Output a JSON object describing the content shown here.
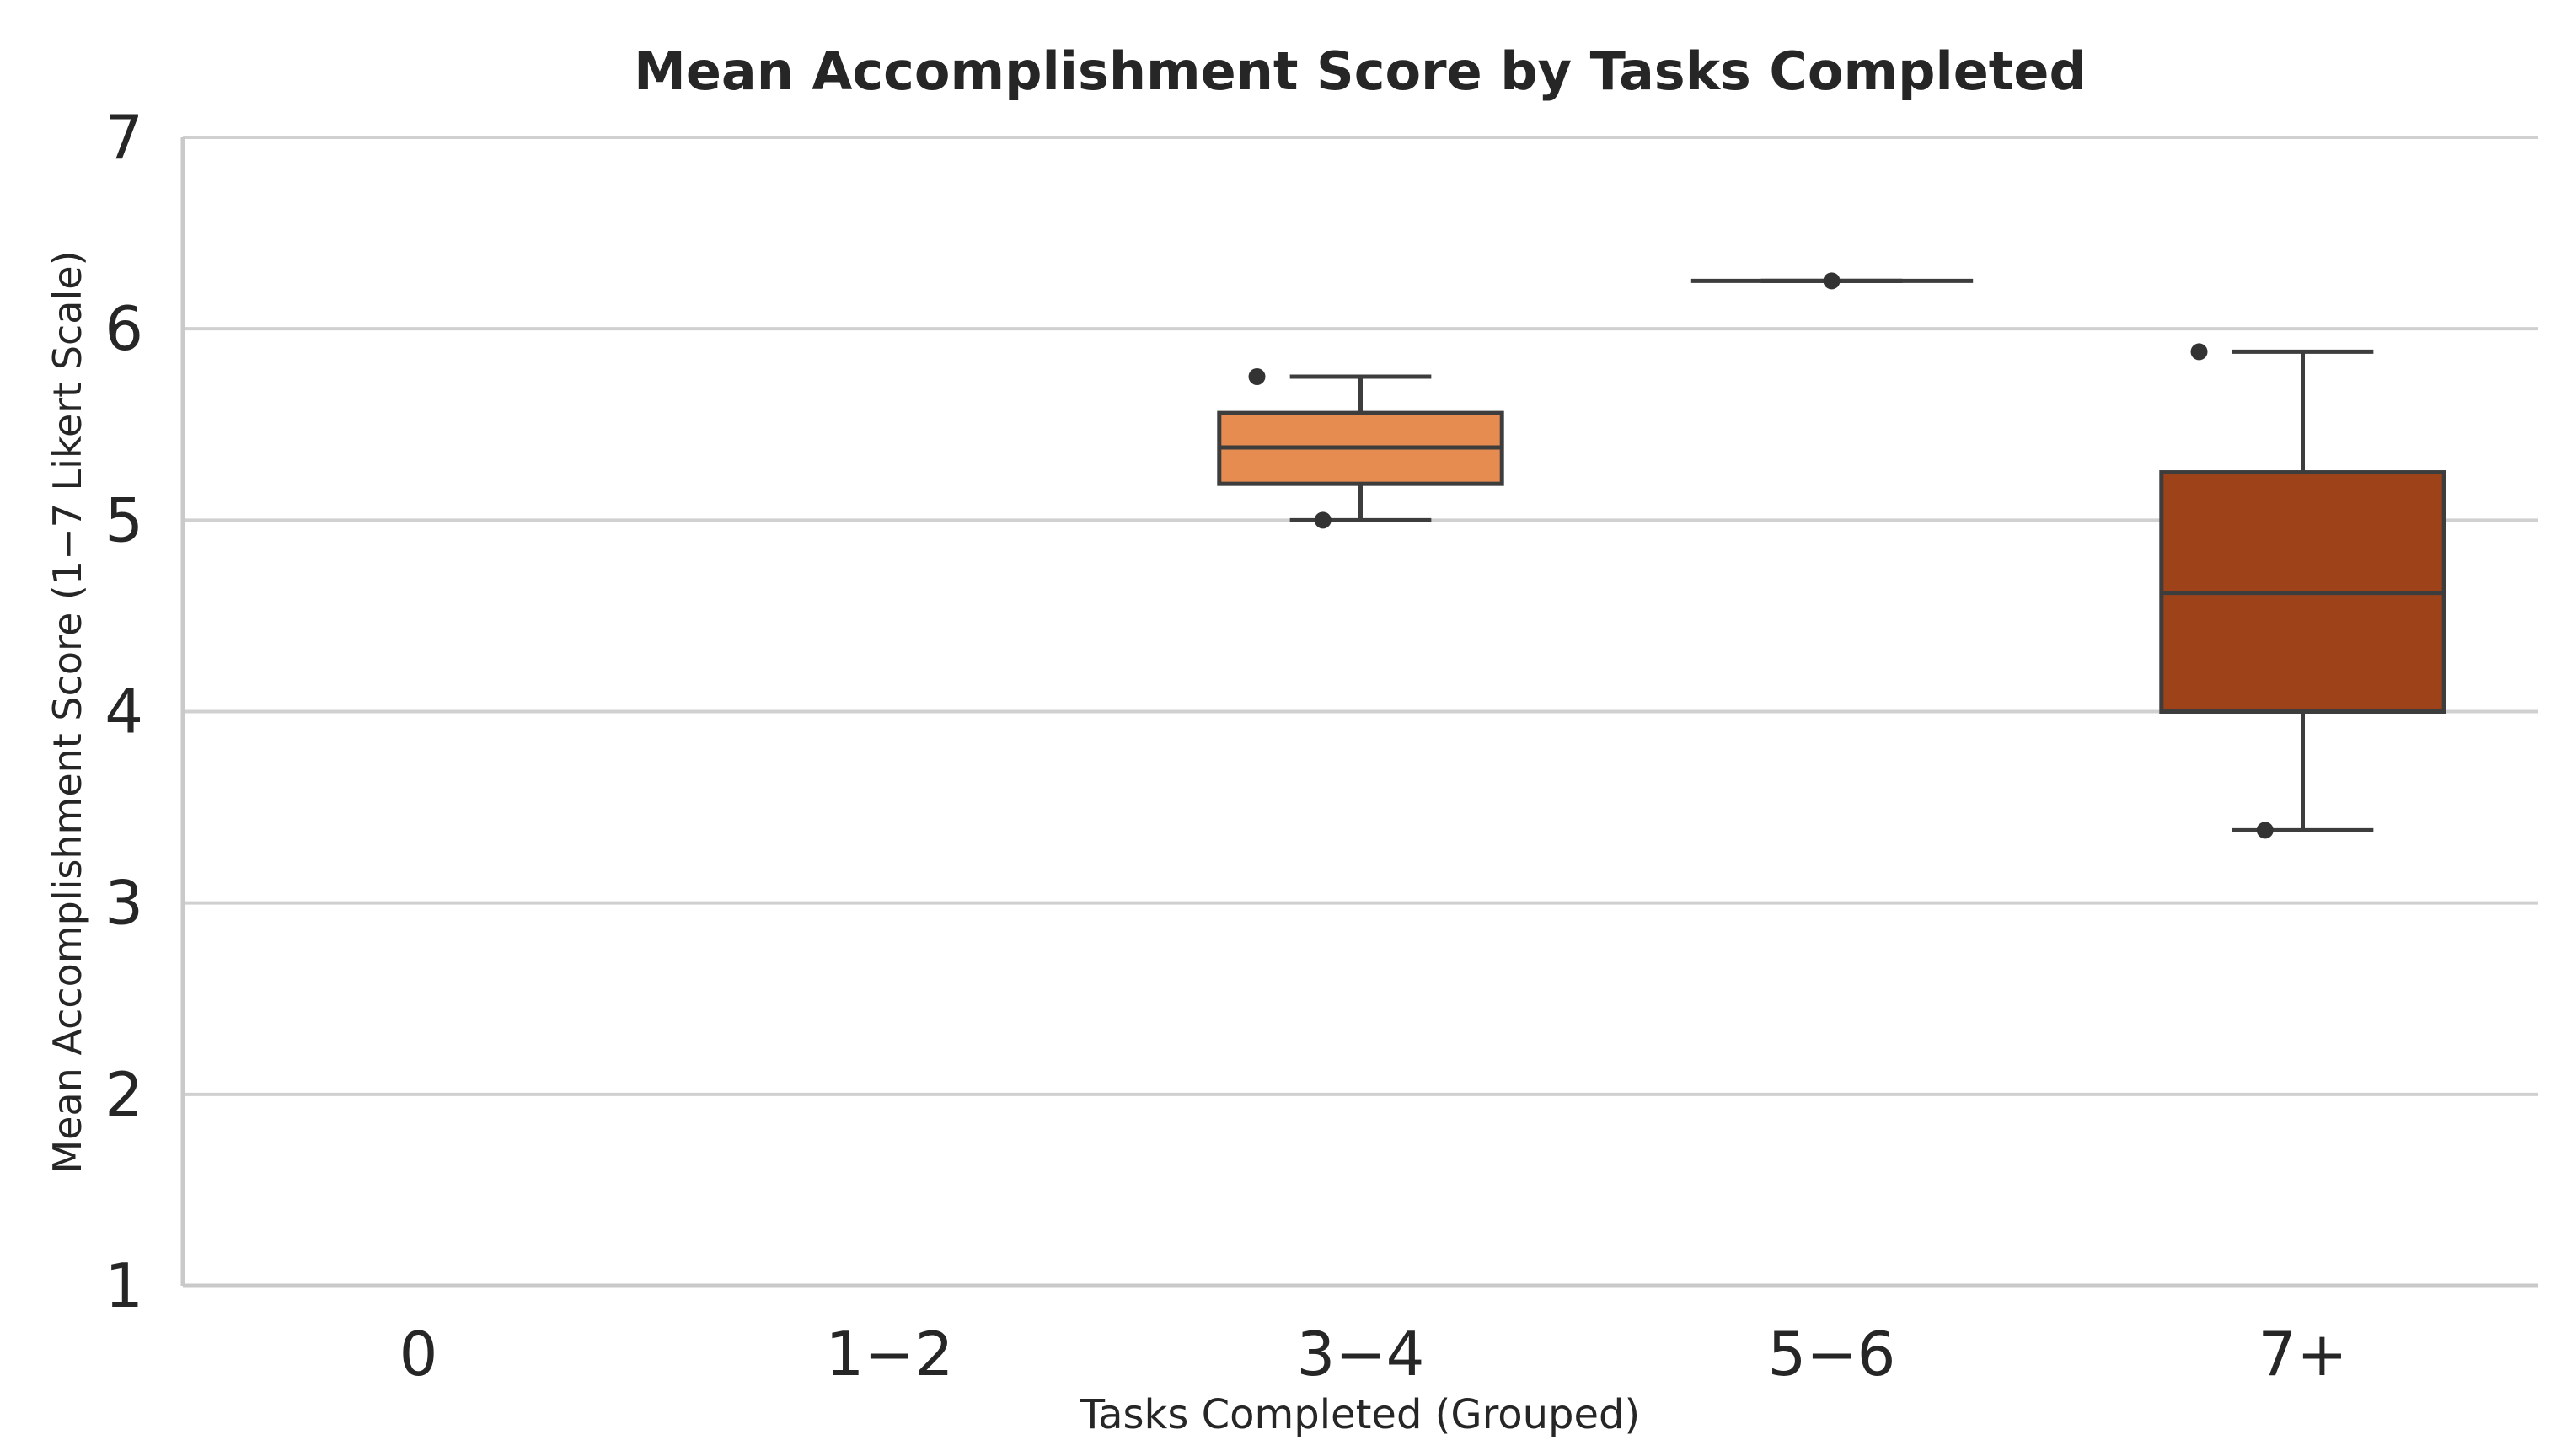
{
  "chart_data": {
    "type": "box",
    "title": "Mean Accomplishment Score by Tasks Completed",
    "xlabel": "Tasks Completed (Grouped)",
    "ylabel": "Mean Accomplishment Score (1−7 Likert Scale)",
    "ylim": [
      1,
      7
    ],
    "yticks": [
      "1",
      "2",
      "3",
      "4",
      "5",
      "6",
      "7"
    ],
    "grid": true,
    "categories": [
      "0",
      "1−2",
      "3−4",
      "5−6",
      "7+"
    ],
    "boxes": [
      null,
      null,
      {
        "whisker_low": 5.0,
        "q1": 5.19,
        "median": 5.38,
        "q3": 5.56,
        "whisker_high": 5.75,
        "color": "#e68c51",
        "points": [
          {
            "offset": -0.22,
            "y": 5.75
          },
          {
            "offset": -0.08,
            "y": 5.0
          }
        ]
      },
      {
        "whisker_low": 6.25,
        "q1": 6.25,
        "median": 6.25,
        "q3": 6.25,
        "whisker_high": 6.25,
        "color": "#d4692f",
        "points": [
          {
            "offset": 0.0,
            "y": 6.25
          }
        ]
      },
      {
        "whisker_low": 3.38,
        "q1": 4.0,
        "median": 4.62,
        "q3": 5.25,
        "whisker_high": 5.88,
        "color": "#9e4319",
        "points": [
          {
            "offset": -0.22,
            "y": 5.88
          },
          {
            "offset": -0.08,
            "y": 3.38
          }
        ]
      }
    ]
  }
}
